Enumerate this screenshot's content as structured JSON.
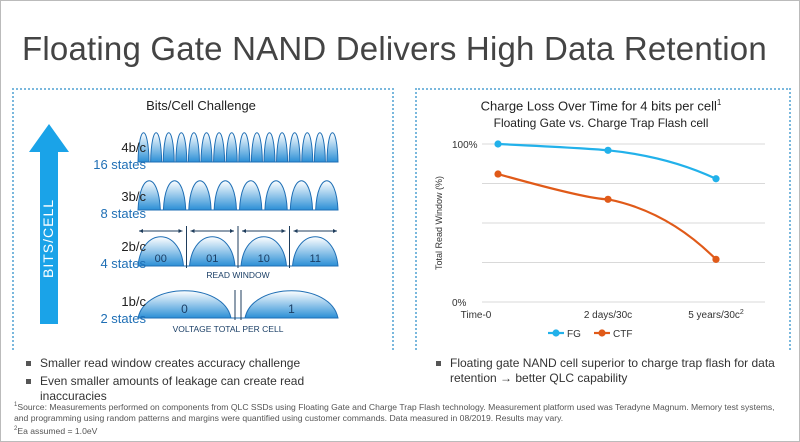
{
  "slide": {
    "title": "Floating Gate NAND Delivers High Data Retention",
    "colors": {
      "accent_blue": "#1f6fb5",
      "fg": "#22b1ea",
      "ctf": "#e05a19",
      "arrow": "#1aa3e8"
    }
  },
  "left_panel": {
    "title": "Bits/Cell Challenge",
    "arrow_label": "BITS/CELL",
    "rows": [
      {
        "bits": "4b/c",
        "states": "16 states"
      },
      {
        "bits": "3b/c",
        "states": "8 states"
      },
      {
        "bits": "2b/c",
        "states": "4 states"
      },
      {
        "bits": "1b/c",
        "states": "2 states"
      }
    ],
    "two_bit_values": [
      "00",
      "01",
      "10",
      "11"
    ],
    "one_bit_values": [
      "0",
      "1"
    ],
    "read_window_label": "READ WINDOW",
    "voltage_label": "VOLTAGE TOTAL PER CELL",
    "bullets": [
      "Smaller read window creates accuracy challenge",
      "Even smaller amounts of leakage can create read inaccuracies"
    ]
  },
  "right_panel": {
    "title": "Charge Loss Over Time for 4 bits per cell",
    "title_sup": "1",
    "subtitle": "Floating Gate vs. Charge Trap Flash cell",
    "bullets": [
      "Floating gate NAND cell superior to charge trap flash for data retention → better QLC capability"
    ]
  },
  "chart_data": {
    "type": "line",
    "title": "Charge Loss Over Time for 4 bits per cell",
    "subtitle": "Floating Gate vs. Charge Trap Flash cell",
    "ylabel": "Total Read Window (%)",
    "xlabel": "",
    "categories": [
      "Time-0",
      "2 days/30c",
      "5 years/30c"
    ],
    "category_sup": [
      "",
      "",
      "2"
    ],
    "ylim": [
      0,
      100
    ],
    "yticks": [
      {
        "value": 100,
        "label": "100%"
      },
      {
        "value": 0,
        "label": "0%"
      }
    ],
    "grid": true,
    "legend": "bottom",
    "series": [
      {
        "name": "FG",
        "color": "#22b1ea",
        "values": [
          100,
          96,
          78
        ]
      },
      {
        "name": "CTF",
        "color": "#e05a19",
        "values": [
          81,
          65,
          27
        ]
      }
    ]
  },
  "footnotes": [
    "Source: Measurements performed on components from QLC SSDs using Floating Gate and Charge Trap Flash technology. Measurement platform used was Teradyne Magnum. Memory test systems, and programming using random patterns and margins were quantified using customer commands. Data measured in 08/2019. Results may vary.",
    "Ea assumed = 1.0eV"
  ],
  "footnote_marks": [
    "1",
    "2"
  ]
}
